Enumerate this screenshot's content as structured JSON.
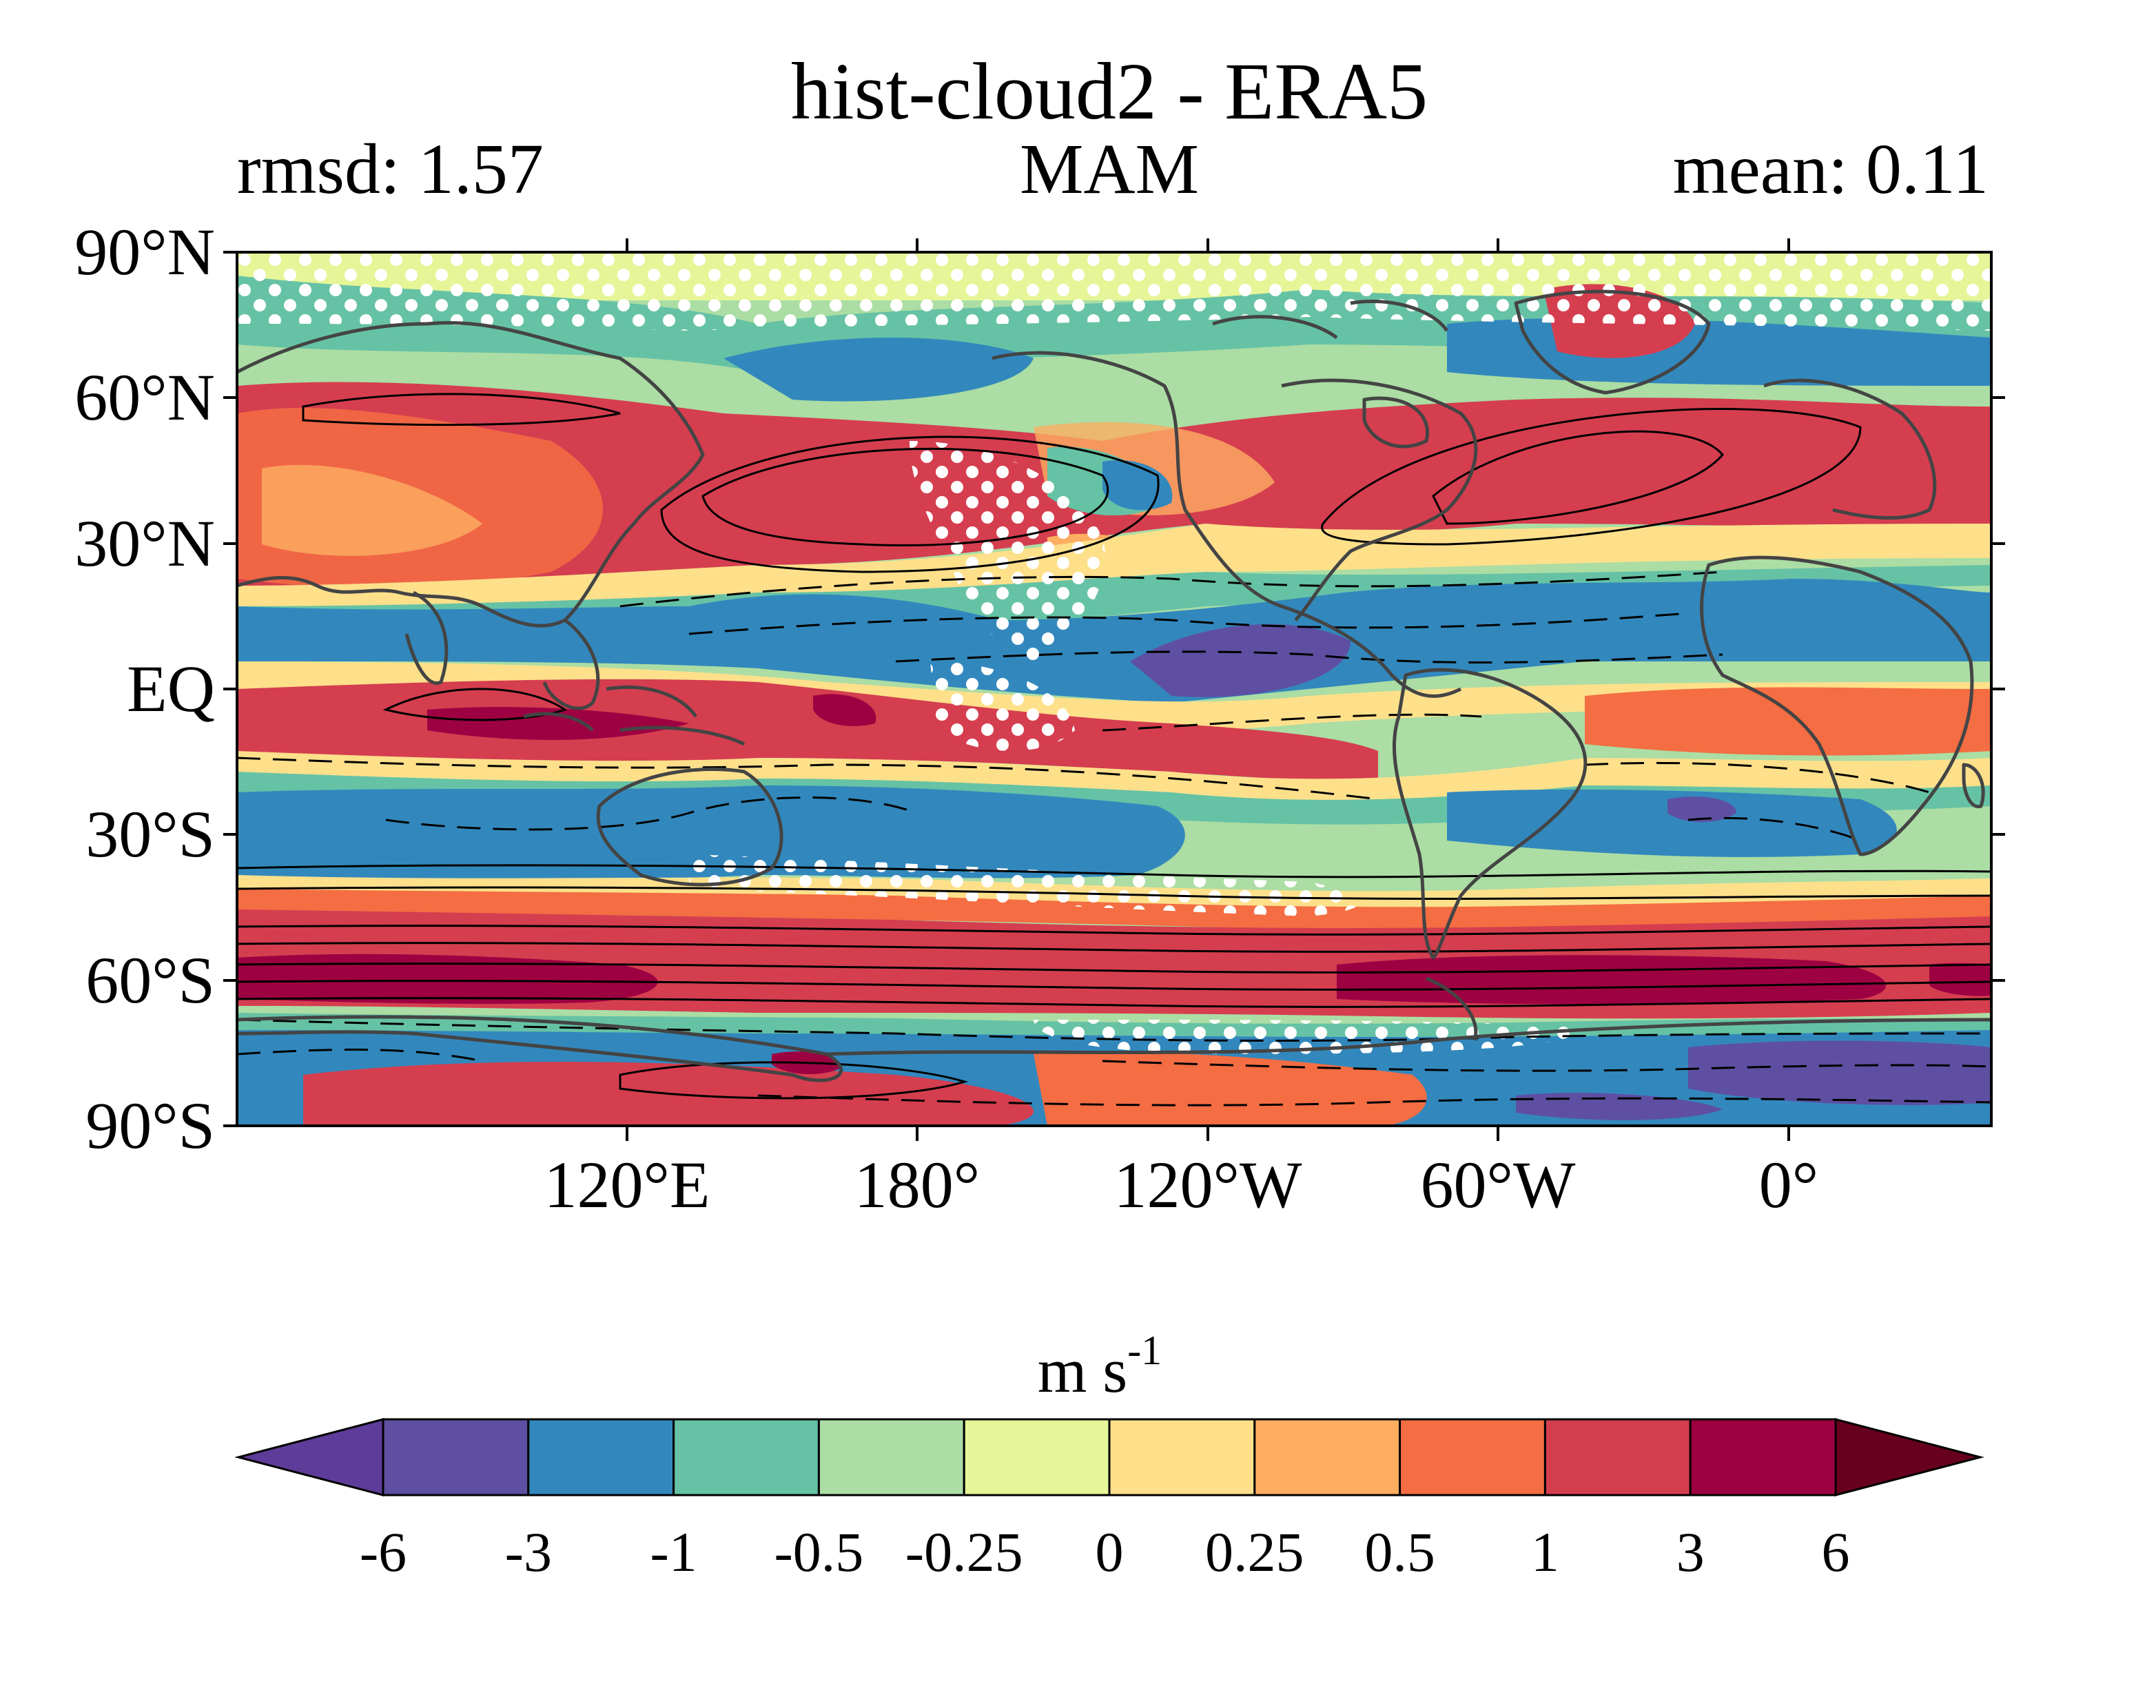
{
  "title": "hist-cloud2 - ERA5",
  "subtitle": {
    "left": "rmsd: 1.57",
    "center": "MAM",
    "right": "mean: 0.11"
  },
  "axes": {
    "y_ticks": [
      "90°N",
      "60°N",
      "30°N",
      "EQ",
      "30°S",
      "60°S",
      "90°S"
    ],
    "x_ticks": [
      "120°E",
      "180°",
      "120°W",
      "60°W",
      "0°"
    ]
  },
  "colorbar": {
    "unit_base": "m s",
    "unit_exp": "-1",
    "tick_labels": [
      "-6",
      "-3",
      "-1",
      "-0.5",
      "-0.25",
      "0",
      "0.25",
      "0.5",
      "1",
      "3",
      "6"
    ],
    "colors": [
      "#5e3c99",
      "#5e4fa2",
      "#3288bd",
      "#66c2a5",
      "#abdda4",
      "#e6f598",
      "#fee08b",
      "#fdae61",
      "#f46d43",
      "#d53e4f",
      "#9e0142",
      "#67001f"
    ]
  },
  "map_palette": {
    "deep_red": "#9e0142",
    "red": "#d53e4f",
    "orange": "#f46d43",
    "light_orange": "#fdae61",
    "yellow": "#fee08b",
    "pale_green": "#e6f598",
    "light_green": "#abdda4",
    "teal": "#66c2a5",
    "blue": "#3288bd",
    "purple": "#5e4fa2",
    "coast": "#444444",
    "contour": "#000000",
    "stipple": "#ffffff"
  }
}
